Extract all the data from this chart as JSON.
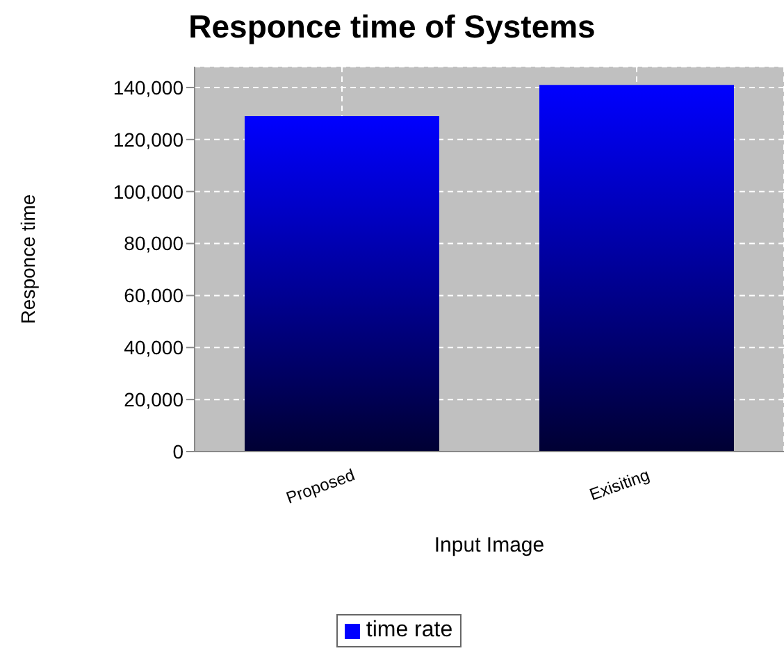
{
  "chart_data": {
    "type": "bar",
    "title": "Responce time of Systems",
    "xlabel": "Input Image",
    "ylabel": "Responce time",
    "categories": [
      "Proposed",
      "Exisiting"
    ],
    "series": [
      {
        "name": "time rate",
        "color": "#0000ff",
        "values": [
          129000,
          141000
        ]
      }
    ],
    "ylim": [
      0,
      148000
    ],
    "yticks": [
      0,
      {
        "value": 20000,
        "label": "20,000"
      },
      {
        "value": 40000,
        "label": "40,000"
      },
      {
        "value": 60000,
        "label": "60,000"
      },
      {
        "value": 80000,
        "label": "80,000"
      },
      {
        "value": 100000,
        "label": "100,000"
      },
      {
        "value": 120000,
        "label": "120,000"
      },
      {
        "value": 140000,
        "label": "140,000"
      }
    ],
    "grid": true,
    "legend": "bottom"
  }
}
